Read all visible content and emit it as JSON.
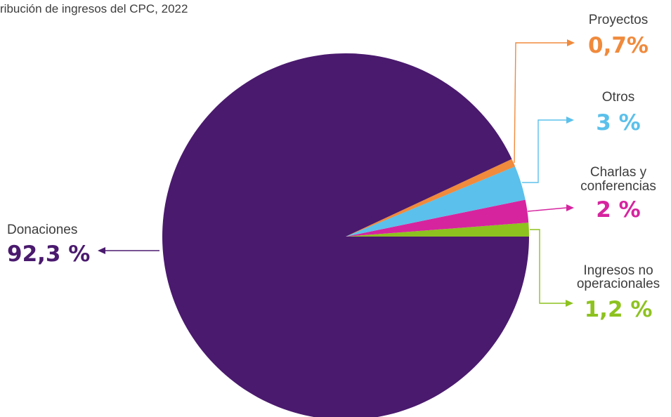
{
  "chart_data": {
    "type": "pie",
    "title": "ribución de ingresos del CPC, 2022",
    "slices": [
      {
        "label": "Ingresos no operacionales",
        "label_lines": [
          "Ingresos no",
          "operacionales"
        ],
        "value_label": "1,2 %",
        "value": 1.2,
        "color": "#8dc21f"
      },
      {
        "label": "Charlas y conferencias",
        "label_lines": [
          "Charlas y",
          "conferencias"
        ],
        "value_label": "2 %",
        "value": 2.0,
        "color": "#d6249f"
      },
      {
        "label": "Otros",
        "label_lines": [
          "Otros"
        ],
        "value_label": "3 %",
        "value": 3.0,
        "color": "#5bc0eb"
      },
      {
        "label": "Proyectos",
        "label_lines": [
          "Proyectos"
        ],
        "value_label": "0,7%",
        "value": 0.7,
        "color": "#f08a3c"
      },
      {
        "label": "Donaciones",
        "label_lines": [
          "Donaciones"
        ],
        "value_label": "92,3 %",
        "value": 92.3,
        "color": "#4a1a6e"
      }
    ]
  }
}
